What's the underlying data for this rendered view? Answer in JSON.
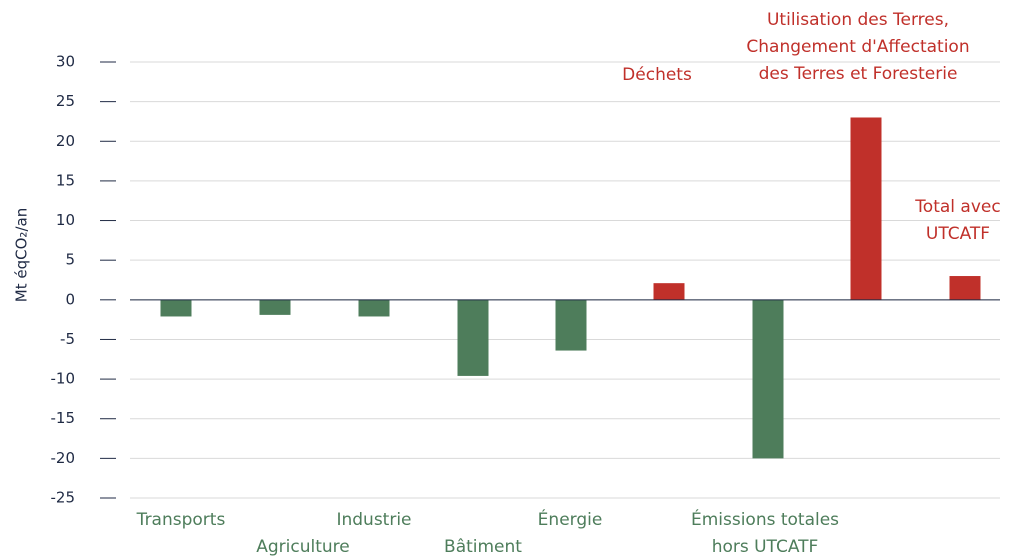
{
  "chart_data": {
    "type": "bar",
    "y_label": "Mt éqCO₂/an",
    "categories": [
      "Transports",
      "Agriculture",
      "Industrie",
      "Bâtiment",
      "Énergie",
      "Déchets",
      "Émissions totales\nhors UTCATF",
      "Utilisation des Terres,\nChangement d'Affectation\ndes Terres et Foresterie",
      "Total avec\nUTCATF"
    ],
    "values": [
      -2.1,
      -1.9,
      -2.1,
      -9.6,
      -6.4,
      2.1,
      -20,
      23,
      3
    ],
    "colors": [
      "#4e7d5b",
      "#4e7d5b",
      "#4e7d5b",
      "#4e7d5b",
      "#4e7d5b",
      "#c0302a",
      "#4e7d5b",
      "#c0302a",
      "#c0302a"
    ],
    "ylim": [
      -25,
      30
    ],
    "yticks": [
      30,
      25,
      20,
      15,
      10,
      5,
      0,
      -5,
      -10,
      -15,
      -20,
      -25
    ],
    "grid": true
  }
}
